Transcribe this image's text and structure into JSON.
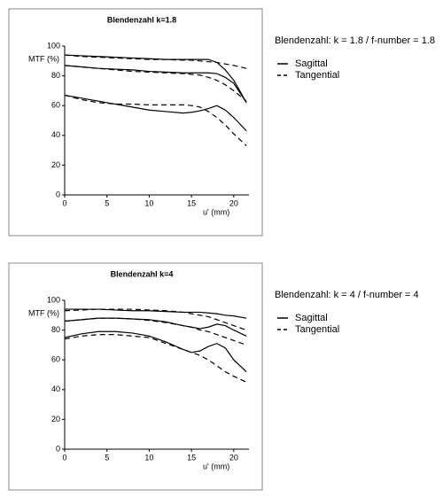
{
  "chart_data": [
    {
      "type": "line",
      "title": "Blendenzahl k=1.8",
      "ylabel": "MTF (%)",
      "xlabel": "u' (mm)",
      "annotation": "Blendenzahl: k = 1.8 / f-number = 1.8",
      "xlim": [
        0,
        21.8
      ],
      "ylim": [
        0,
        100
      ],
      "xticks": [
        0,
        5,
        10,
        15,
        20
      ],
      "yticks": [
        0,
        20,
        40,
        60,
        80,
        100
      ],
      "x": [
        0,
        2,
        4,
        6,
        8,
        10,
        12,
        14,
        15,
        16,
        17,
        18,
        19,
        20,
        21.5
      ],
      "series": [
        {
          "name": "Sagittal",
          "color": "#000000",
          "dash": "solid",
          "lines": [
            [
              94,
              93.5,
              93,
              92.5,
              92,
              91.5,
              91,
              91,
              91,
              91,
              91,
              89,
              84,
              77,
              62
            ],
            [
              87,
              86,
              85,
              84.5,
              84,
              83,
              82.5,
              82,
              82,
              82,
              82,
              81.5,
              79,
              75,
              62
            ],
            [
              67,
              65,
              63,
              61,
              59,
              57,
              56,
              55,
              55.5,
              56.5,
              58,
              60,
              57,
              52,
              43
            ]
          ]
        },
        {
          "name": "Tangential",
          "color": "#000000",
          "dash": "dashed",
          "lines": [
            [
              94,
              93,
              92.5,
              92,
              91.5,
              91,
              91,
              90.5,
              90.5,
              90,
              89.5,
              89,
              88,
              87,
              85
            ],
            [
              87,
              86,
              85,
              84,
              83,
              82.5,
              82,
              81.5,
              81,
              80.5,
              79,
              77,
              74,
              70,
              63
            ],
            [
              67,
              64,
              62,
              61,
              61,
              60.5,
              60.5,
              60.5,
              60,
              59,
              56,
              52,
              47,
              41,
              33
            ]
          ]
        }
      ]
    },
    {
      "type": "line",
      "title": "Blendenzahl k=4",
      "ylabel": "MTF (%)",
      "xlabel": "u' (mm)",
      "annotation": "Blendenzahl: k = 4 / f-number = 4",
      "xlim": [
        0,
        21.8
      ],
      "ylim": [
        0,
        100
      ],
      "xticks": [
        0,
        5,
        10,
        15,
        20
      ],
      "yticks": [
        0,
        20,
        40,
        60,
        80,
        100
      ],
      "x": [
        0,
        2,
        4,
        6,
        8,
        10,
        12,
        14,
        15,
        16,
        17,
        18,
        19,
        20,
        21.5
      ],
      "series": [
        {
          "name": "Sagittal",
          "color": "#000000",
          "dash": "solid",
          "lines": [
            [
              94,
              94,
              94,
              93.5,
              93,
              93,
              92.5,
              92,
              92,
              92,
              91.5,
              91,
              90,
              89.5,
              88
            ],
            [
              86,
              87,
              88,
              88,
              87.5,
              87,
              85.5,
              83,
              82,
              81,
              82,
              84,
              83,
              80,
              76
            ],
            [
              75,
              77.5,
              79,
              79,
              78,
              76,
              72,
              67,
              65,
              66,
              69,
              71,
              68,
              60,
              52
            ]
          ]
        },
        {
          "name": "Tangential",
          "color": "#000000",
          "dash": "dashed",
          "lines": [
            [
              93,
              93.5,
              94,
              94,
              94,
              93.5,
              93,
              92,
              91,
              90,
              89,
              87,
              85,
              83,
              80
            ],
            [
              86,
              87,
              88,
              88,
              87.5,
              86.5,
              85,
              83,
              82,
              80,
              79,
              77,
              75,
              73,
              70
            ],
            [
              74,
              76,
              77,
              77,
              76,
              75,
              71,
              67,
              65,
              63,
              60,
              56,
              52,
              49,
              45
            ]
          ]
        }
      ]
    }
  ]
}
